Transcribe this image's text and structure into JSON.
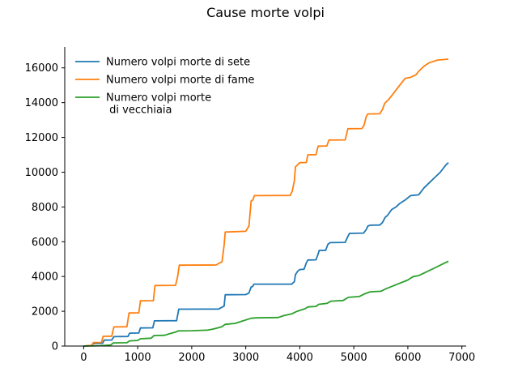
{
  "chart_data": {
    "type": "line",
    "title": "Cause morte volpi",
    "xlabel": "",
    "ylabel": "",
    "xlim": [
      -350,
      7080
    ],
    "ylim": [
      0,
      17200
    ],
    "xticks": [
      0,
      1000,
      2000,
      3000,
      4000,
      5000,
      6000,
      7000
    ],
    "yticks": [
      0,
      2000,
      4000,
      6000,
      8000,
      10000,
      12000,
      14000,
      16000
    ],
    "grid": false,
    "legend_position": "top-left",
    "series": [
      {
        "name": "Numero volpi morte di sete",
        "color": "#1f77b4",
        "points": [
          [
            0,
            0
          ],
          [
            150,
            30
          ],
          [
            180,
            150
          ],
          [
            350,
            160
          ],
          [
            380,
            340
          ],
          [
            520,
            350
          ],
          [
            560,
            540
          ],
          [
            820,
            550
          ],
          [
            850,
            740
          ],
          [
            1020,
            750
          ],
          [
            1050,
            1040
          ],
          [
            1280,
            1050
          ],
          [
            1310,
            1450
          ],
          [
            1720,
            1460
          ],
          [
            1760,
            2120
          ],
          [
            2500,
            2130
          ],
          [
            2540,
            2200
          ],
          [
            2600,
            2300
          ],
          [
            2620,
            2950
          ],
          [
            3000,
            2960
          ],
          [
            3060,
            3050
          ],
          [
            3100,
            3400
          ],
          [
            3130,
            3430
          ],
          [
            3150,
            3560
          ],
          [
            3850,
            3560
          ],
          [
            3900,
            3700
          ],
          [
            3920,
            4100
          ],
          [
            3960,
            4300
          ],
          [
            4000,
            4400
          ],
          [
            4080,
            4420
          ],
          [
            4120,
            4780
          ],
          [
            4150,
            4950
          ],
          [
            4300,
            4960
          ],
          [
            4340,
            5300
          ],
          [
            4360,
            5500
          ],
          [
            4480,
            5510
          ],
          [
            4520,
            5850
          ],
          [
            4560,
            5950
          ],
          [
            4840,
            5960
          ],
          [
            4890,
            6300
          ],
          [
            4920,
            6480
          ],
          [
            5180,
            6500
          ],
          [
            5230,
            6700
          ],
          [
            5260,
            6900
          ],
          [
            5300,
            6950
          ],
          [
            5480,
            6960
          ],
          [
            5530,
            7100
          ],
          [
            5580,
            7400
          ],
          [
            5620,
            7500
          ],
          [
            5700,
            7850
          ],
          [
            5780,
            8000
          ],
          [
            5850,
            8200
          ],
          [
            5950,
            8400
          ],
          [
            6050,
            8650
          ],
          [
            6200,
            8700
          ],
          [
            6250,
            8900
          ],
          [
            6300,
            9100
          ],
          [
            6400,
            9400
          ],
          [
            6500,
            9700
          ],
          [
            6600,
            10000
          ],
          [
            6700,
            10400
          ],
          [
            6750,
            10550
          ]
        ]
      },
      {
        "name": "Numero volpi morte di fame",
        "color": "#ff7f0e",
        "points": [
          [
            0,
            0
          ],
          [
            150,
            40
          ],
          [
            180,
            200
          ],
          [
            330,
            210
          ],
          [
            360,
            560
          ],
          [
            520,
            570
          ],
          [
            560,
            1100
          ],
          [
            800,
            1110
          ],
          [
            840,
            1900
          ],
          [
            1020,
            1910
          ],
          [
            1050,
            2600
          ],
          [
            1290,
            2610
          ],
          [
            1320,
            3480
          ],
          [
            1700,
            3490
          ],
          [
            1740,
            4000
          ],
          [
            1770,
            4650
          ],
          [
            2450,
            4660
          ],
          [
            2500,
            4750
          ],
          [
            2560,
            4850
          ],
          [
            2600,
            5800
          ],
          [
            2620,
            6560
          ],
          [
            3000,
            6600
          ],
          [
            3060,
            6900
          ],
          [
            3100,
            8350
          ],
          [
            3130,
            8400
          ],
          [
            3160,
            8650
          ],
          [
            3820,
            8660
          ],
          [
            3860,
            8900
          ],
          [
            3900,
            9500
          ],
          [
            3920,
            10300
          ],
          [
            4000,
            10550
          ],
          [
            4120,
            10560
          ],
          [
            4150,
            11000
          ],
          [
            4300,
            11010
          ],
          [
            4340,
            11500
          ],
          [
            4500,
            11510
          ],
          [
            4540,
            11850
          ],
          [
            4840,
            11860
          ],
          [
            4890,
            12500
          ],
          [
            5150,
            12510
          ],
          [
            5190,
            12700
          ],
          [
            5230,
            13200
          ],
          [
            5260,
            13350
          ],
          [
            5480,
            13360
          ],
          [
            5530,
            13600
          ],
          [
            5570,
            13950
          ],
          [
            5650,
            14200
          ],
          [
            5750,
            14600
          ],
          [
            5850,
            15000
          ],
          [
            5950,
            15400
          ],
          [
            6050,
            15450
          ],
          [
            6150,
            15600
          ],
          [
            6200,
            15800
          ],
          [
            6300,
            16100
          ],
          [
            6400,
            16300
          ],
          [
            6550,
            16450
          ],
          [
            6750,
            16500
          ]
        ]
      },
      {
        "name": "Numero volpi morte\n di vecchiaia",
        "color": "#2ca02c",
        "points": [
          [
            0,
            0
          ],
          [
            300,
            20
          ],
          [
            500,
            60
          ],
          [
            550,
            180
          ],
          [
            800,
            190
          ],
          [
            850,
            300
          ],
          [
            1000,
            320
          ],
          [
            1050,
            420
          ],
          [
            1250,
            450
          ],
          [
            1300,
            600
          ],
          [
            1500,
            620
          ],
          [
            1580,
            700
          ],
          [
            1700,
            800
          ],
          [
            1750,
            870
          ],
          [
            2000,
            880
          ],
          [
            2300,
            920
          ],
          [
            2400,
            980
          ],
          [
            2550,
            1100
          ],
          [
            2620,
            1250
          ],
          [
            2800,
            1300
          ],
          [
            2950,
            1450
          ],
          [
            3100,
            1600
          ],
          [
            3200,
            1620
          ],
          [
            3600,
            1640
          ],
          [
            3700,
            1750
          ],
          [
            3850,
            1850
          ],
          [
            3950,
            2000
          ],
          [
            4100,
            2150
          ],
          [
            4150,
            2250
          ],
          [
            4300,
            2280
          ],
          [
            4350,
            2400
          ],
          [
            4500,
            2450
          ],
          [
            4580,
            2580
          ],
          [
            4800,
            2620
          ],
          [
            4900,
            2800
          ],
          [
            5100,
            2850
          ],
          [
            5200,
            3000
          ],
          [
            5300,
            3120
          ],
          [
            5500,
            3150
          ],
          [
            5600,
            3300
          ],
          [
            5800,
            3550
          ],
          [
            6000,
            3800
          ],
          [
            6100,
            4000
          ],
          [
            6200,
            4050
          ],
          [
            6300,
            4200
          ],
          [
            6400,
            4350
          ],
          [
            6500,
            4500
          ],
          [
            6600,
            4650
          ],
          [
            6750,
            4880
          ]
        ]
      }
    ]
  }
}
